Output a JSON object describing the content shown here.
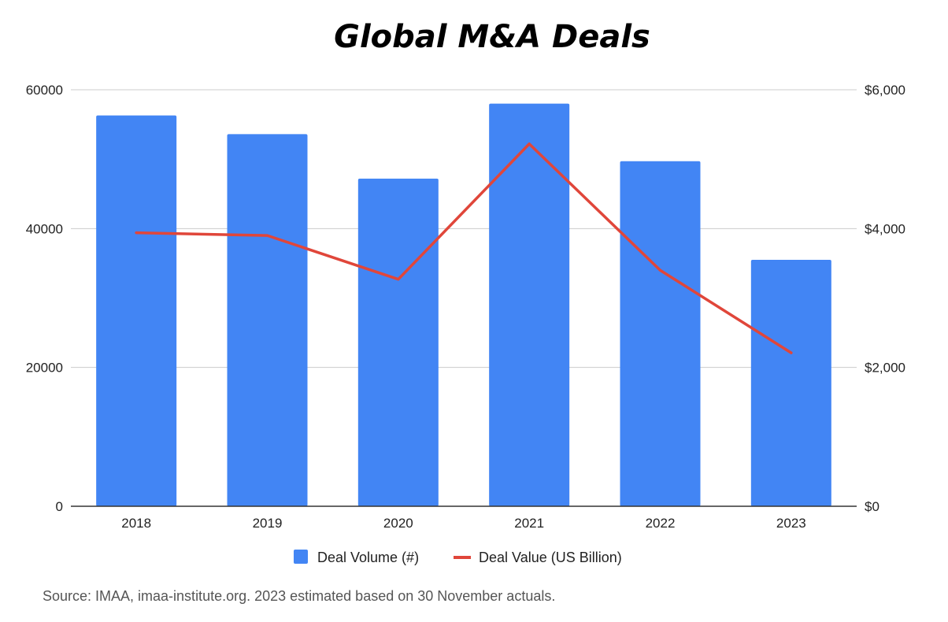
{
  "chart_data": {
    "type": "bar",
    "title": "Global M&A Deals",
    "categories": [
      "2018",
      "2019",
      "2020",
      "2021",
      "2022",
      "2023"
    ],
    "series": [
      {
        "name": "Deal Volume (#)",
        "type": "bar",
        "axis": "left",
        "color": "#4285F4",
        "values": [
          56300,
          53600,
          47200,
          58000,
          49700,
          35500
        ]
      },
      {
        "name": "Deal Value (US Billion)",
        "type": "line",
        "axis": "right",
        "color": "#E0463A",
        "values": [
          3940,
          3900,
          3270,
          5220,
          3400,
          2210
        ]
      }
    ],
    "y_left": {
      "min": 0,
      "max": 60000,
      "ticks": [
        0,
        20000,
        40000,
        60000
      ],
      "tick_labels": [
        "0",
        "20000",
        "40000",
        "60000"
      ]
    },
    "y_right": {
      "min": 0,
      "max": 6000,
      "ticks": [
        0,
        2000,
        4000,
        6000
      ],
      "tick_labels": [
        "$0",
        "$2,000",
        "$4,000",
        "$6,000"
      ]
    },
    "grid": true,
    "legend_position": "bottom",
    "source": "Source: IMAA, imaa-institute.org. 2023 estimated based on 30 November actuals."
  }
}
